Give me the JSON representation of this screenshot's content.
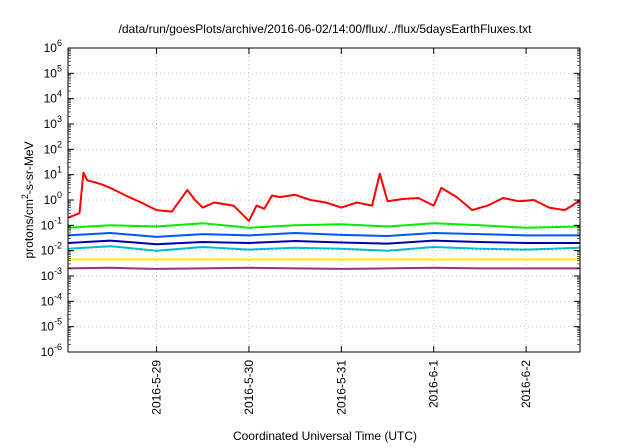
{
  "chart_data": {
    "type": "line",
    "title": "/data/run/goesPlots/archive/2016-06-02/14:00/flux/../flux/5daysEarthFluxes.txt",
    "xlabel": "Coordinated Universal Time (UTC)",
    "ylabel_parts": [
      "protons/cm",
      "2",
      "-s-sr-MeV"
    ],
    "x_range": [
      "2016-05-28T01:00",
      "2016-06-02T14:00"
    ],
    "x_ticks": [
      "2016-5-29",
      "2016-5-30",
      "2016-5-31",
      "2016-6-1",
      "2016-6-2"
    ],
    "y_scale": "log",
    "ylim": [
      1e-06,
      1000000.0
    ],
    "y_ticks": [
      {
        "base": "10",
        "exp": "-6"
      },
      {
        "base": "10",
        "exp": "-5"
      },
      {
        "base": "10",
        "exp": "-4"
      },
      {
        "base": "10",
        "exp": "-3"
      },
      {
        "base": "10",
        "exp": "-2"
      },
      {
        "base": "10",
        "exp": "-1"
      },
      {
        "base": "10",
        "exp": "0"
      },
      {
        "base": "10",
        "exp": "1"
      },
      {
        "base": "10",
        "exp": "2"
      },
      {
        "base": "10",
        "exp": "3"
      },
      {
        "base": "10",
        "exp": "4"
      },
      {
        "base": "10",
        "exp": "5"
      },
      {
        "base": "10",
        "exp": "6"
      }
    ],
    "grid": true,
    "series": [
      {
        "color": "#ff0000",
        "x": [
          "2016-05-28T01:00",
          "2016-05-28T04:00",
          "2016-05-28T05:00",
          "2016-05-28T06:00",
          "2016-05-28T08:00",
          "2016-05-28T10:00",
          "2016-05-28T12:00",
          "2016-05-28T16:00",
          "2016-05-28T20:00",
          "2016-05-29T00:00",
          "2016-05-29T04:00",
          "2016-05-29T08:00",
          "2016-05-29T10:00",
          "2016-05-29T12:00",
          "2016-05-29T15:00",
          "2016-05-29T20:00",
          "2016-05-30T00:00",
          "2016-05-30T02:00",
          "2016-05-30T04:00",
          "2016-05-30T06:00",
          "2016-05-30T08:00",
          "2016-05-30T12:00",
          "2016-05-30T16:00",
          "2016-05-30T20:00",
          "2016-05-31T00:00",
          "2016-05-31T04:00",
          "2016-05-31T08:00",
          "2016-05-31T10:00",
          "2016-05-31T12:00",
          "2016-05-31T16:00",
          "2016-05-31T20:00",
          "2016-06-01T00:00",
          "2016-06-01T02:00",
          "2016-06-01T06:00",
          "2016-06-01T10:00",
          "2016-06-01T14:00",
          "2016-06-01T18:00",
          "2016-06-01T22:00",
          "2016-06-02T02:00",
          "2016-06-02T06:00",
          "2016-06-02T10:00",
          "2016-06-02T12:00",
          "2016-06-02T14:00"
        ],
        "y": [
          0.2,
          0.3,
          12,
          6,
          5,
          4,
          3,
          1.5,
          0.8,
          0.4,
          0.35,
          2.5,
          1.0,
          0.5,
          0.8,
          0.6,
          0.15,
          0.6,
          0.45,
          1.5,
          1.3,
          1.6,
          1.0,
          0.8,
          0.5,
          0.8,
          0.6,
          11,
          0.9,
          1.1,
          1.2,
          0.6,
          3,
          1.3,
          0.4,
          0.6,
          1.2,
          0.9,
          1.0,
          0.5,
          0.4,
          0.6,
          1.0
        ]
      },
      {
        "color": "#00ee00",
        "x": [
          "2016-05-28T01:00",
          "2016-05-28T12:00",
          "2016-05-29T00:00",
          "2016-05-29T12:00",
          "2016-05-30T00:00",
          "2016-05-30T12:00",
          "2016-05-31T00:00",
          "2016-05-31T12:00",
          "2016-06-01T00:00",
          "2016-06-01T12:00",
          "2016-06-02T00:00",
          "2016-06-02T14:00"
        ],
        "y": [
          0.08,
          0.1,
          0.09,
          0.12,
          0.08,
          0.1,
          0.11,
          0.09,
          0.12,
          0.1,
          0.08,
          0.09
        ]
      },
      {
        "color": "#00bbcc",
        "x": [
          "2016-05-28T01:00",
          "2016-05-28T12:00",
          "2016-05-29T00:00",
          "2016-05-29T12:00",
          "2016-05-30T00:00",
          "2016-05-30T12:00",
          "2016-05-31T00:00",
          "2016-05-31T12:00",
          "2016-06-01T00:00",
          "2016-06-01T12:00",
          "2016-06-02T00:00",
          "2016-06-02T14:00"
        ],
        "y": [
          0.012,
          0.015,
          0.01,
          0.014,
          0.011,
          0.013,
          0.012,
          0.01,
          0.014,
          0.012,
          0.011,
          0.013
        ]
      },
      {
        "color": "#0055ff",
        "x": [
          "2016-05-28T01:00",
          "2016-05-28T12:00",
          "2016-05-29T00:00",
          "2016-05-29T12:00",
          "2016-05-30T00:00",
          "2016-05-30T12:00",
          "2016-05-31T00:00",
          "2016-05-31T12:00",
          "2016-06-01T00:00",
          "2016-06-01T12:00",
          "2016-06-02T00:00",
          "2016-06-02T14:00"
        ],
        "y": [
          0.04,
          0.05,
          0.035,
          0.045,
          0.04,
          0.05,
          0.042,
          0.038,
          0.05,
          0.045,
          0.04,
          0.04
        ]
      },
      {
        "color": "#0000aa",
        "x": [
          "2016-05-28T01:00",
          "2016-05-28T12:00",
          "2016-05-29T00:00",
          "2016-05-29T12:00",
          "2016-05-30T00:00",
          "2016-05-30T12:00",
          "2016-05-31T00:00",
          "2016-05-31T12:00",
          "2016-06-01T00:00",
          "2016-06-01T12:00",
          "2016-06-02T00:00",
          "2016-06-02T14:00"
        ],
        "y": [
          0.02,
          0.025,
          0.018,
          0.022,
          0.02,
          0.024,
          0.021,
          0.019,
          0.025,
          0.022,
          0.02,
          0.02
        ]
      },
      {
        "color": "#ffee00",
        "x": [
          "2016-05-28T01:00",
          "2016-05-28T12:00",
          "2016-05-29T00:00",
          "2016-05-29T12:00",
          "2016-05-30T00:00",
          "2016-05-30T12:00",
          "2016-05-31T00:00",
          "2016-05-31T12:00",
          "2016-06-01T00:00",
          "2016-06-01T12:00",
          "2016-06-02T00:00",
          "2016-06-02T14:00"
        ],
        "y": [
          0.0045,
          0.0045,
          0.0045,
          0.0045,
          0.0045,
          0.0045,
          0.0045,
          0.0045,
          0.0045,
          0.0045,
          0.0045,
          0.0045
        ]
      },
      {
        "color": "#993377",
        "x": [
          "2016-05-28T01:00",
          "2016-05-28T12:00",
          "2016-05-29T00:00",
          "2016-05-29T12:00",
          "2016-05-30T00:00",
          "2016-05-30T12:00",
          "2016-05-31T00:00",
          "2016-05-31T12:00",
          "2016-06-01T00:00",
          "2016-06-01T12:00",
          "2016-06-02T00:00",
          "2016-06-02T14:00"
        ],
        "y": [
          0.002,
          0.0021,
          0.0019,
          0.002,
          0.0021,
          0.002,
          0.0019,
          0.002,
          0.0021,
          0.002,
          0.002,
          0.002
        ]
      }
    ]
  }
}
